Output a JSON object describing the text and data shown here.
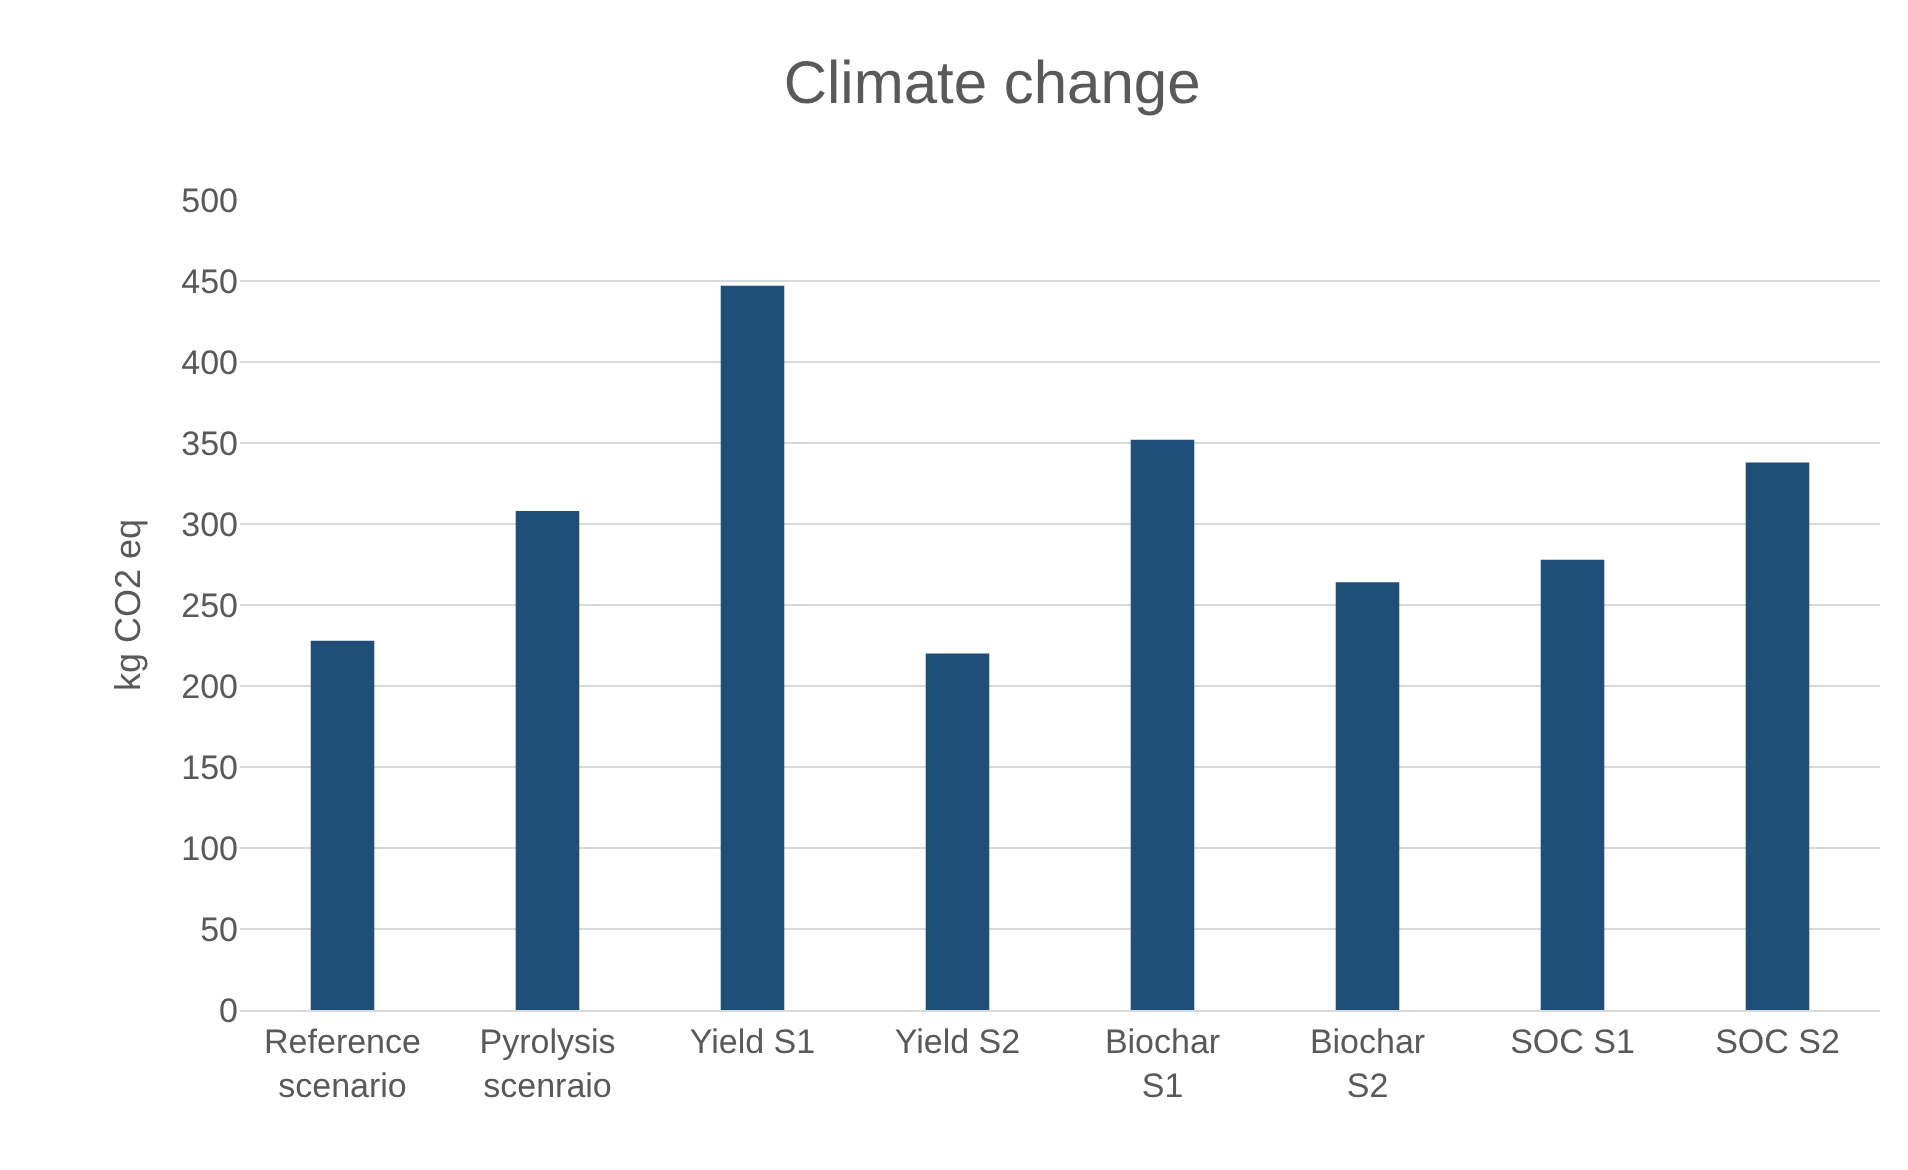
{
  "chart_data": {
    "type": "bar",
    "title": "Climate change",
    "ylabel": "kg CO2 eq",
    "categories": [
      "Reference scenario",
      "Pyrolysis scenraio",
      "Yield S1",
      "Yield S2",
      "Biochar S1",
      "Biochar S2",
      "SOC S1",
      "SOC S2"
    ],
    "values": [
      228,
      308,
      447,
      220,
      352,
      264,
      278,
      338
    ],
    "color": "#1f4e79",
    "ylim": [
      0,
      500
    ],
    "yticks": [
      0,
      50,
      100,
      150,
      200,
      250,
      300,
      350,
      400,
      450,
      500
    ],
    "grid": "y"
  }
}
